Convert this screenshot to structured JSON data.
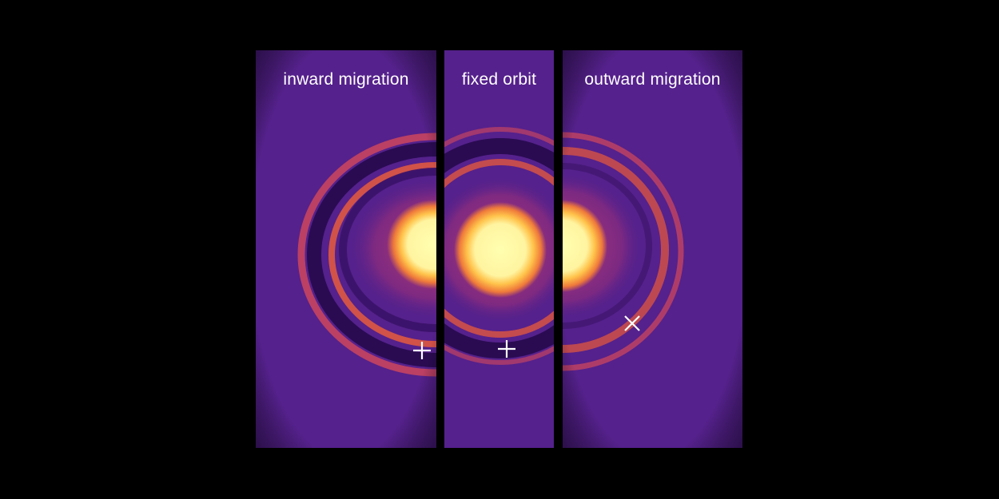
{
  "panels": [
    {
      "id": "inward",
      "label": "inward migration",
      "marker": {
        "symbol": "+",
        "icon": "plus-marker-icon"
      }
    },
    {
      "id": "fixed",
      "label": "fixed orbit",
      "marker": {
        "symbol": "+",
        "icon": "plus-marker-icon"
      }
    },
    {
      "id": "outward",
      "label": "outward migration",
      "marker": {
        "symbol": "×",
        "icon": "cross-marker-icon"
      }
    }
  ],
  "colors": {
    "background": "#000000",
    "disk_base": "#54208a",
    "gap_dark": "#2a0b52",
    "ring_orange": "#e0563e",
    "glow_orange": "#f08a35",
    "core_yellow": "#ffffa8",
    "marker": "#ffffff"
  }
}
